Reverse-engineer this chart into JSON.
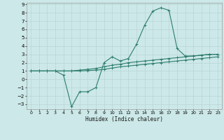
{
  "xlabel": "Humidex (Indice chaleur)",
  "background_color": "#cce8e8",
  "grid_color": "#b8d4d4",
  "line_color": "#2d7d6e",
  "xlim": [
    -0.5,
    23.5
  ],
  "ylim": [
    -3.6,
    9.2
  ],
  "xticks": [
    0,
    1,
    2,
    3,
    4,
    5,
    6,
    7,
    8,
    9,
    10,
    11,
    12,
    13,
    14,
    15,
    16,
    17,
    18,
    19,
    20,
    21,
    22,
    23
  ],
  "yticks": [
    -3,
    -2,
    -1,
    0,
    1,
    2,
    3,
    4,
    5,
    6,
    7,
    8,
    9
  ],
  "curve1_x": [
    0,
    1,
    2,
    3,
    4,
    5,
    6,
    7,
    8,
    9,
    10,
    11,
    12,
    13,
    14,
    15,
    16,
    17,
    18,
    19,
    20,
    21,
    22,
    23
  ],
  "curve1_y": [
    1.0,
    1.0,
    1.0,
    1.0,
    0.5,
    -3.3,
    -1.5,
    -1.5,
    -1.0,
    2.0,
    2.7,
    2.2,
    2.5,
    4.2,
    6.5,
    8.2,
    8.6,
    8.3,
    3.7,
    2.8,
    2.8,
    2.9,
    3.0,
    3.0
  ],
  "curve2_x": [
    0,
    1,
    2,
    3,
    4,
    5,
    6,
    7,
    8,
    9,
    10,
    11,
    12,
    13,
    14,
    15,
    16,
    17,
    18,
    19,
    20,
    21,
    22,
    23
  ],
  "curve2_y": [
    1.0,
    1.0,
    1.0,
    1.0,
    1.0,
    1.0,
    1.1,
    1.2,
    1.3,
    1.5,
    1.7,
    1.8,
    2.0,
    2.1,
    2.2,
    2.3,
    2.4,
    2.5,
    2.6,
    2.7,
    2.8,
    2.9,
    3.0,
    3.0
  ],
  "curve3_x": [
    0,
    1,
    2,
    3,
    4,
    5,
    6,
    7,
    8,
    9,
    10,
    11,
    12,
    13,
    14,
    15,
    16,
    17,
    18,
    19,
    20,
    21,
    22,
    23
  ],
  "curve3_y": [
    1.0,
    1.0,
    1.0,
    1.0,
    1.0,
    1.0,
    1.0,
    1.05,
    1.1,
    1.2,
    1.35,
    1.5,
    1.6,
    1.7,
    1.8,
    1.9,
    2.0,
    2.1,
    2.2,
    2.3,
    2.4,
    2.5,
    2.6,
    2.7
  ]
}
